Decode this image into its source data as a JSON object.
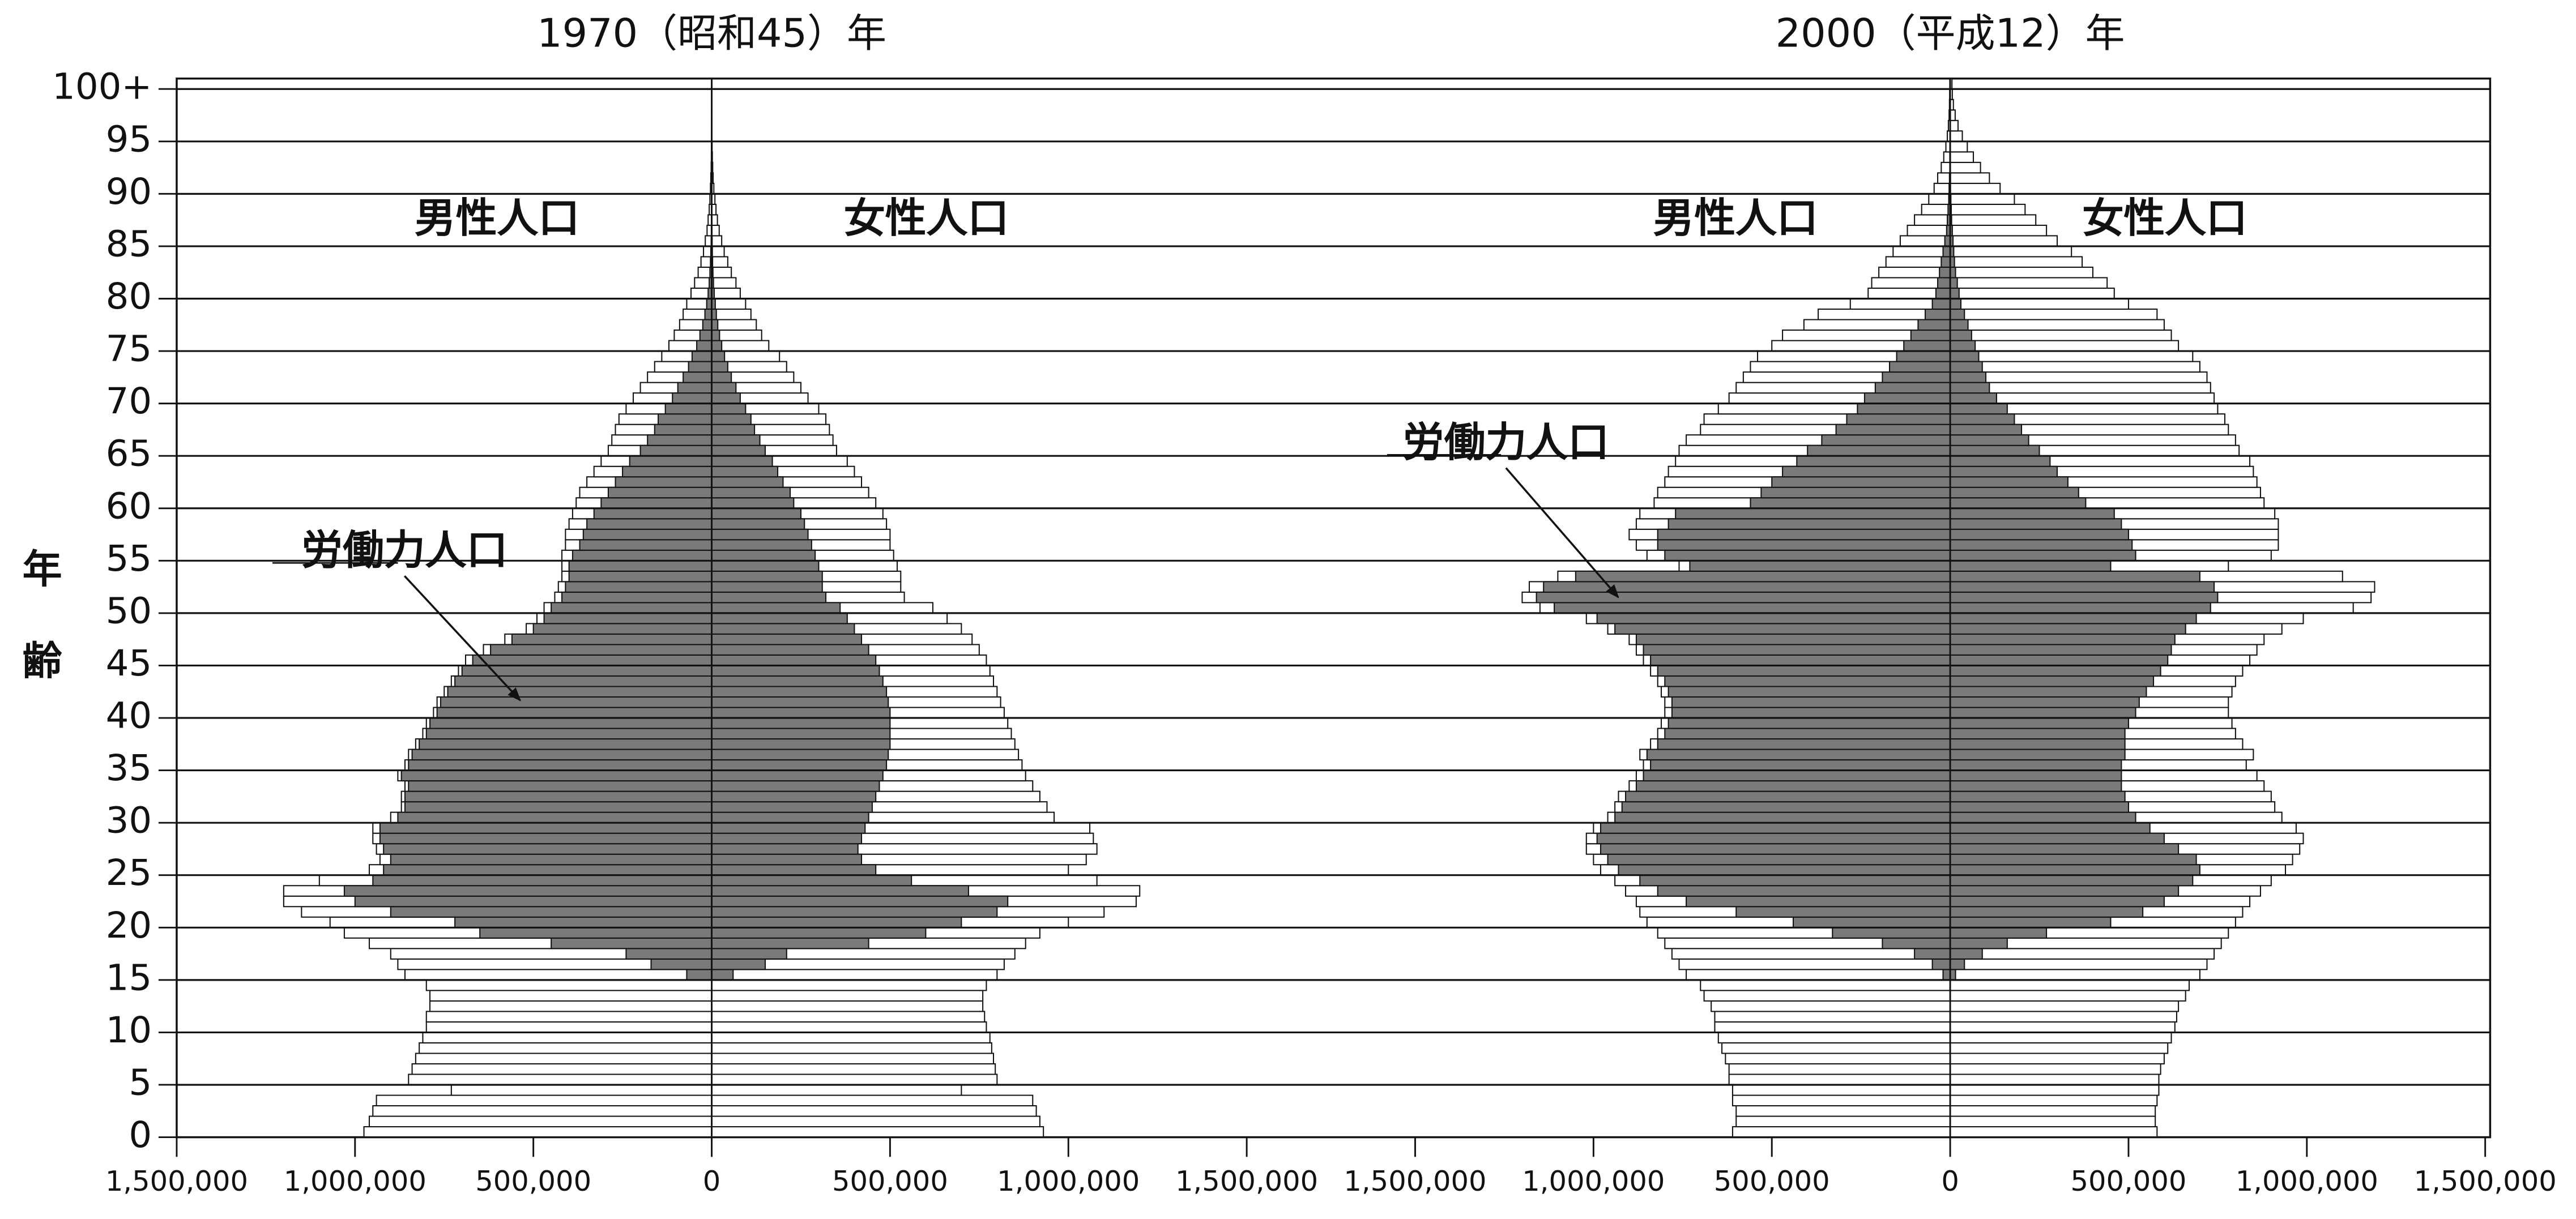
{
  "chart_data": [
    {
      "type": "population-pyramid",
      "title": "1970（昭和45）年",
      "y_label": "年齢",
      "grid": true,
      "ylim": [
        0,
        101
      ],
      "yticks": [
        0,
        5,
        10,
        15,
        20,
        25,
        30,
        35,
        40,
        45,
        50,
        55,
        60,
        65,
        70,
        75,
        80,
        85,
        90,
        95,
        {
          "value": 100,
          "label": "100+"
        }
      ],
      "xlim": [
        -1500000,
        1500000
      ],
      "xticks": [
        {
          "value": -1500000,
          "label": "1,500,000"
        },
        {
          "value": -1000000,
          "label": "1,000,000"
        },
        {
          "value": -500000,
          "label": "500,000"
        },
        0,
        {
          "value": 500000,
          "label": "500,000"
        },
        {
          "value": 1000000,
          "label": "1,000,000"
        },
        {
          "value": 1500000,
          "label": "1,500,000"
        }
      ],
      "y": [
        0,
        1,
        2,
        3,
        4,
        5,
        6,
        7,
        8,
        9,
        10,
        11,
        12,
        13,
        14,
        15,
        16,
        17,
        18,
        19,
        20,
        21,
        22,
        23,
        24,
        25,
        26,
        27,
        28,
        29,
        30,
        31,
        32,
        33,
        34,
        35,
        36,
        37,
        38,
        39,
        40,
        41,
        42,
        43,
        44,
        45,
        46,
        47,
        48,
        49,
        50,
        51,
        52,
        53,
        54,
        55,
        56,
        57,
        58,
        59,
        60,
        61,
        62,
        63,
        64,
        65,
        66,
        67,
        68,
        69,
        70,
        71,
        72,
        73,
        74,
        75,
        76,
        77,
        78,
        79,
        80,
        81,
        82,
        83,
        84,
        85,
        86,
        87,
        88,
        89,
        90,
        91,
        92,
        93,
        94,
        95,
        96,
        97,
        98,
        99,
        100
      ],
      "series": [
        {
          "name": "男性人口",
          "side": "left",
          "color": "#ffffff",
          "values": [
            975000,
            960000,
            950000,
            940000,
            730000,
            850000,
            840000,
            830000,
            820000,
            810000,
            800000,
            800000,
            790000,
            790000,
            800000,
            860000,
            880000,
            900000,
            960000,
            1030000,
            1070000,
            1150000,
            1200000,
            1200000,
            1100000,
            960000,
            930000,
            940000,
            950000,
            950000,
            900000,
            870000,
            870000,
            860000,
            880000,
            860000,
            850000,
            830000,
            810000,
            800000,
            780000,
            770000,
            750000,
            730000,
            710000,
            690000,
            640000,
            580000,
            520000,
            490000,
            470000,
            440000,
            430000,
            420000,
            420000,
            420000,
            410000,
            410000,
            400000,
            390000,
            380000,
            370000,
            350000,
            330000,
            310000,
            290000,
            280000,
            270000,
            260000,
            240000,
            220000,
            200000,
            180000,
            160000,
            140000,
            120000,
            105000,
            90000,
            80000,
            70000,
            58000,
            48000,
            38000,
            30000,
            23000,
            18000,
            13000,
            10000,
            7000,
            5000,
            3500,
            2500,
            1500,
            1000,
            700,
            400,
            300,
            200,
            100,
            100,
            100
          ]
        },
        {
          "name": "女性人口",
          "side": "right",
          "color": "#ffffff",
          "values": [
            930000,
            920000,
            910000,
            900000,
            700000,
            800000,
            795000,
            790000,
            785000,
            780000,
            770000,
            765000,
            760000,
            760000,
            770000,
            800000,
            820000,
            850000,
            880000,
            920000,
            1000000,
            1100000,
            1190000,
            1200000,
            1080000,
            1000000,
            1050000,
            1080000,
            1070000,
            1060000,
            960000,
            940000,
            920000,
            900000,
            880000,
            870000,
            860000,
            850000,
            840000,
            830000,
            820000,
            810000,
            800000,
            790000,
            780000,
            770000,
            750000,
            730000,
            700000,
            660000,
            620000,
            540000,
            530000,
            530000,
            520000,
            510000,
            500000,
            500000,
            490000,
            480000,
            460000,
            440000,
            420000,
            400000,
            380000,
            350000,
            340000,
            330000,
            320000,
            300000,
            270000,
            250000,
            230000,
            210000,
            190000,
            160000,
            140000,
            125000,
            110000,
            95000,
            80000,
            68000,
            55000,
            45000,
            35000,
            28000,
            21000,
            16000,
            12000,
            9000,
            6000,
            4000,
            2800,
            1800,
            1100,
            700,
            400,
            250,
            150,
            100,
            100
          ]
        }
      ],
      "labor_force": {
        "name": "労働力人口",
        "color": "#7a7a7a",
        "male": [
          null,
          null,
          null,
          null,
          null,
          null,
          null,
          null,
          null,
          null,
          null,
          null,
          null,
          null,
          null,
          70000,
          170000,
          240000,
          450000,
          650000,
          720000,
          900000,
          1000000,
          1030000,
          950000,
          920000,
          900000,
          920000,
          930000,
          930000,
          880000,
          860000,
          860000,
          850000,
          870000,
          850000,
          840000,
          820000,
          800000,
          790000,
          770000,
          760000,
          740000,
          720000,
          700000,
          670000,
          620000,
          560000,
          500000,
          470000,
          450000,
          420000,
          410000,
          400000,
          400000,
          390000,
          370000,
          360000,
          350000,
          330000,
          310000,
          290000,
          270000,
          250000,
          230000,
          200000,
          180000,
          160000,
          150000,
          130000,
          110000,
          95000,
          80000,
          65000,
          55000,
          42000,
          33000,
          25000,
          19000,
          14000,
          10000,
          7000,
          5000,
          3500,
          2500,
          1500,
          1000,
          700,
          400,
          300,
          200,
          100,
          100,
          50,
          50,
          0,
          0,
          0,
          0,
          0,
          0
        ],
        "female": [
          null,
          null,
          null,
          null,
          null,
          null,
          null,
          null,
          null,
          null,
          null,
          null,
          null,
          null,
          null,
          60000,
          150000,
          210000,
          440000,
          600000,
          700000,
          800000,
          830000,
          720000,
          560000,
          460000,
          420000,
          410000,
          420000,
          430000,
          440000,
          450000,
          460000,
          470000,
          480000,
          490000,
          495000,
          500000,
          500000,
          500000,
          500000,
          495000,
          490000,
          480000,
          470000,
          460000,
          440000,
          420000,
          400000,
          380000,
          360000,
          320000,
          310000,
          310000,
          300000,
          290000,
          280000,
          270000,
          260000,
          250000,
          230000,
          220000,
          200000,
          185000,
          170000,
          150000,
          135000,
          120000,
          110000,
          95000,
          80000,
          68000,
          55000,
          45000,
          36000,
          28000,
          22000,
          17000,
          13000,
          10000,
          7000,
          5000,
          3500,
          2500,
          1800,
          1200,
          800,
          500,
          300,
          200,
          100,
          100,
          50,
          0,
          0,
          0,
          0,
          0,
          0,
          0,
          0
        ]
      }
    },
    {
      "type": "population-pyramid",
      "title": "2000（平成12）年",
      "xlim": [
        -1500000,
        1500000
      ],
      "xticks": [
        {
          "value": -1500000,
          "label": "1,500,000"
        },
        {
          "value": -1000000,
          "label": "1,000,000"
        },
        {
          "value": -500000,
          "label": "500,000"
        },
        0,
        {
          "value": 500000,
          "label": "500,000"
        },
        {
          "value": 1000000,
          "label": "1,000,000"
        },
        {
          "value": 1500000,
          "label": "1,500,000"
        }
      ],
      "y": [
        0,
        1,
        2,
        3,
        4,
        5,
        6,
        7,
        8,
        9,
        10,
        11,
        12,
        13,
        14,
        15,
        16,
        17,
        18,
        19,
        20,
        21,
        22,
        23,
        24,
        25,
        26,
        27,
        28,
        29,
        30,
        31,
        32,
        33,
        34,
        35,
        36,
        37,
        38,
        39,
        40,
        41,
        42,
        43,
        44,
        45,
        46,
        47,
        48,
        49,
        50,
        51,
        52,
        53,
        54,
        55,
        56,
        57,
        58,
        59,
        60,
        61,
        62,
        63,
        64,
        65,
        66,
        67,
        68,
        69,
        70,
        71,
        72,
        73,
        74,
        75,
        76,
        77,
        78,
        79,
        80,
        81,
        82,
        83,
        84,
        85,
        86,
        87,
        88,
        89,
        90,
        91,
        92,
        93,
        94,
        95,
        96,
        97,
        98,
        99,
        100
      ],
      "series": [
        {
          "name": "男性人口",
          "side": "left",
          "color": "#ffffff",
          "values": [
            610000,
            600000,
            600000,
            610000,
            610000,
            620000,
            620000,
            630000,
            640000,
            650000,
            660000,
            660000,
            670000,
            690000,
            700000,
            740000,
            760000,
            780000,
            800000,
            820000,
            850000,
            870000,
            880000,
            910000,
            940000,
            980000,
            1000000,
            1020000,
            1020000,
            1000000,
            960000,
            940000,
            930000,
            900000,
            880000,
            860000,
            870000,
            840000,
            820000,
            810000,
            800000,
            800000,
            810000,
            820000,
            840000,
            860000,
            880000,
            900000,
            960000,
            1020000,
            1150000,
            1200000,
            1180000,
            1100000,
            760000,
            850000,
            880000,
            900000,
            880000,
            870000,
            830000,
            820000,
            800000,
            790000,
            770000,
            760000,
            740000,
            700000,
            690000,
            650000,
            620000,
            600000,
            580000,
            560000,
            540000,
            500000,
            470000,
            410000,
            370000,
            280000,
            230000,
            220000,
            200000,
            180000,
            160000,
            140000,
            120000,
            100000,
            80000,
            60000,
            45000,
            35000,
            25000,
            18000,
            12000,
            8000,
            5000,
            3000,
            2000,
            1500,
            1000
          ]
        },
        {
          "name": "女性人口",
          "side": "right",
          "color": "#ffffff",
          "values": [
            580000,
            575000,
            575000,
            580000,
            585000,
            585000,
            590000,
            600000,
            610000,
            620000,
            630000,
            635000,
            640000,
            660000,
            670000,
            700000,
            720000,
            740000,
            760000,
            780000,
            800000,
            820000,
            840000,
            870000,
            900000,
            940000,
            960000,
            980000,
            990000,
            970000,
            930000,
            910000,
            900000,
            880000,
            860000,
            830000,
            850000,
            820000,
            800000,
            790000,
            780000,
            780000,
            790000,
            800000,
            820000,
            840000,
            860000,
            880000,
            930000,
            990000,
            1130000,
            1180000,
            1190000,
            1100000,
            780000,
            900000,
            920000,
            920000,
            920000,
            910000,
            880000,
            870000,
            860000,
            850000,
            840000,
            810000,
            800000,
            780000,
            770000,
            750000,
            740000,
            730000,
            720000,
            700000,
            680000,
            640000,
            620000,
            600000,
            580000,
            500000,
            460000,
            440000,
            400000,
            370000,
            340000,
            300000,
            270000,
            240000,
            210000,
            180000,
            140000,
            110000,
            85000,
            65000,
            48000,
            34000,
            22000,
            14000,
            9000,
            6000,
            5000
          ]
        }
      ],
      "labor_force": {
        "name": "労働力人口",
        "color": "#7a7a7a",
        "male": [
          null,
          null,
          null,
          null,
          null,
          null,
          null,
          null,
          null,
          null,
          null,
          null,
          null,
          null,
          null,
          20000,
          50000,
          100000,
          190000,
          330000,
          440000,
          600000,
          740000,
          820000,
          870000,
          930000,
          960000,
          980000,
          990000,
          980000,
          940000,
          920000,
          910000,
          880000,
          860000,
          840000,
          850000,
          820000,
          800000,
          790000,
          780000,
          780000,
          790000,
          800000,
          820000,
          840000,
          860000,
          880000,
          940000,
          990000,
          1110000,
          1160000,
          1140000,
          1050000,
          730000,
          800000,
          820000,
          820000,
          790000,
          770000,
          560000,
          530000,
          500000,
          470000,
          430000,
          400000,
          360000,
          320000,
          290000,
          260000,
          240000,
          210000,
          190000,
          170000,
          150000,
          130000,
          110000,
          90000,
          70000,
          50000,
          40000,
          35000,
          30000,
          25000,
          20000,
          15000,
          10000,
          8000,
          6000,
          4000,
          3000,
          2000,
          1000,
          1000,
          500,
          0,
          0,
          0,
          0,
          0,
          0
        ],
        "female": [
          null,
          null,
          null,
          null,
          null,
          null,
          null,
          null,
          null,
          null,
          null,
          null,
          null,
          null,
          null,
          15000,
          40000,
          90000,
          160000,
          270000,
          450000,
          540000,
          600000,
          640000,
          680000,
          700000,
          690000,
          640000,
          600000,
          560000,
          520000,
          500000,
          490000,
          480000,
          480000,
          480000,
          490000,
          490000,
          490000,
          500000,
          520000,
          530000,
          550000,
          570000,
          590000,
          610000,
          620000,
          630000,
          660000,
          690000,
          730000,
          750000,
          740000,
          700000,
          450000,
          520000,
          510000,
          500000,
          480000,
          460000,
          380000,
          360000,
          330000,
          300000,
          280000,
          250000,
          220000,
          200000,
          180000,
          160000,
          130000,
          110000,
          100000,
          90000,
          80000,
          70000,
          60000,
          50000,
          40000,
          30000,
          25000,
          20000,
          15000,
          12000,
          10000,
          8000,
          6000,
          4000,
          3000,
          2000,
          1000,
          1000,
          500,
          500,
          0,
          0,
          0,
          0,
          0,
          0,
          0
        ]
      }
    }
  ]
}
